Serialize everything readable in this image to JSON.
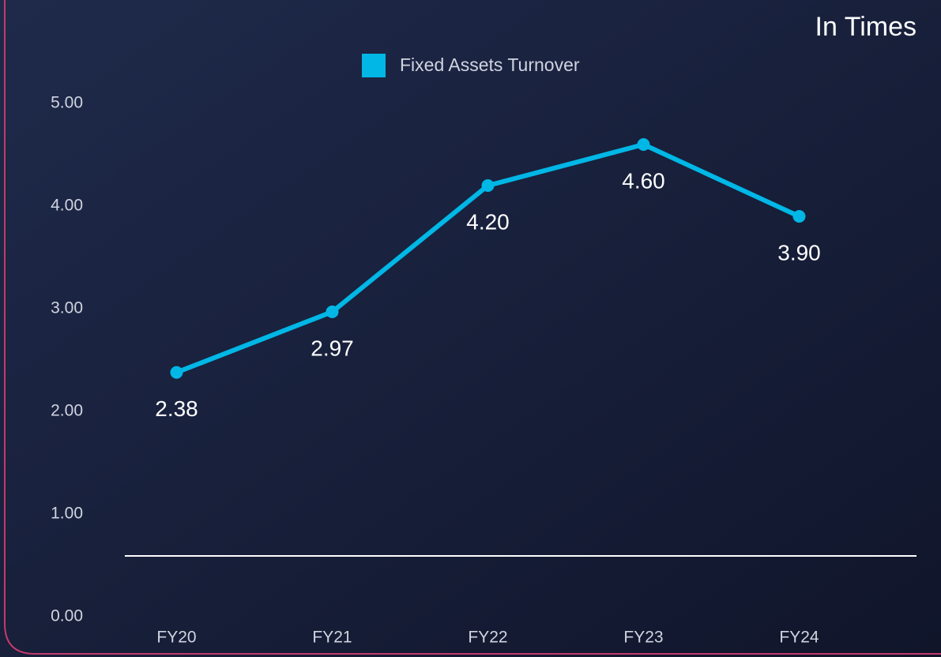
{
  "chart_data": {
    "type": "line",
    "unit_note": "In Times",
    "categories": [
      "FY20",
      "FY21",
      "FY22",
      "FY23",
      "FY24"
    ],
    "series": [
      {
        "name": "Fixed Assets Turnover",
        "color": "#00b7e6",
        "values": [
          2.38,
          2.97,
          4.2,
          4.6,
          3.9
        ],
        "value_labels": [
          "2.38",
          "2.97",
          "4.20",
          "4.60",
          "3.90"
        ]
      }
    ],
    "ylim": [
      0,
      5
    ],
    "yticks": [
      {
        "value": 0,
        "label": "0.00"
      },
      {
        "value": 1,
        "label": "1.00"
      },
      {
        "value": 2,
        "label": "2.00"
      },
      {
        "value": 3,
        "label": "3.00"
      },
      {
        "value": 4,
        "label": "4.00"
      },
      {
        "value": 5,
        "label": "5.00"
      }
    ],
    "legend": "top",
    "grid": false
  }
}
